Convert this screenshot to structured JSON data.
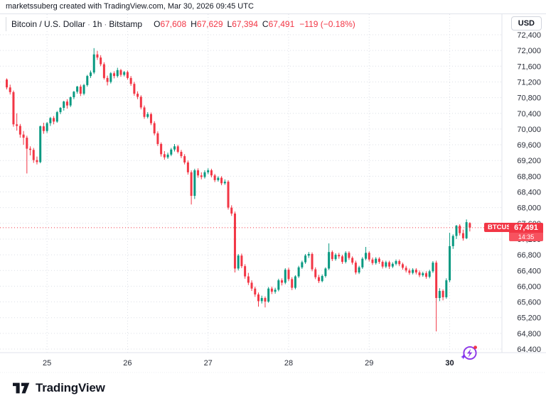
{
  "attribution": "marketssuberg created with TradingView.com, Mar 30, 2026 09:45 UTC",
  "legend": {
    "title": "Bitcoin / U.S. Dollar",
    "sep": "·",
    "interval": "1h",
    "exchange": "Bitstamp",
    "o_label": "O",
    "o_value": "67,608",
    "h_label": "H",
    "h_value": "67,629",
    "l_label": "L",
    "l_value": "67,394",
    "c_label": "C",
    "c_value": "67,491",
    "change": "−119 (−0.18%)"
  },
  "currency_button": "USD",
  "last_price_label": {
    "symbol": "BTCUSD",
    "price": "67,491",
    "countdown": "14:35"
  },
  "footer": {
    "logo_text": "TradingView"
  },
  "colors": {
    "up": "#089981",
    "down": "#f23645",
    "last_price_line": "#f23645",
    "grid": "#dcdfe6",
    "axis_line": "#e0e3eb",
    "purple": "#8c35e8"
  },
  "chart_data": {
    "type": "candlestick",
    "title": "Bitcoin / U.S. Dollar",
    "exchange": "Bitstamp",
    "interval": "1h",
    "price_axis": {
      "unit": "USD",
      "min": 64400,
      "max": 72400,
      "step": 400,
      "tick_labels": [
        "72,400",
        "72,000",
        "71,600",
        "71,200",
        "70,800",
        "70,400",
        "70,000",
        "69,600",
        "69,200",
        "68,800",
        "68,400",
        "68,000",
        "67,600",
        "67,200",
        "66,800",
        "66,400",
        "66,000",
        "65,600",
        "65,200",
        "64,800",
        "64,400"
      ]
    },
    "time_axis": {
      "labels": [
        "25",
        "26",
        "27",
        "28",
        "29",
        "30"
      ],
      "candle_indices": [
        12,
        36,
        60,
        84,
        108,
        132
      ],
      "emphasized": "30",
      "month": "March"
    },
    "last_price": 67491,
    "last_candle": {
      "open": 67608,
      "high": 67629,
      "low": 67394,
      "close": 67491,
      "change": -119,
      "change_pct": -0.18
    },
    "candles": [
      [
        71260,
        71290,
        71010,
        71060
      ],
      [
        71060,
        71130,
        70880,
        70940
      ],
      [
        70940,
        70980,
        70060,
        70120
      ],
      [
        70120,
        70400,
        69960,
        70080
      ],
      [
        70080,
        70130,
        69780,
        69860
      ],
      [
        69860,
        69950,
        69600,
        69780
      ],
      [
        69780,
        69830,
        68870,
        69500
      ],
      [
        69500,
        69560,
        69330,
        69470
      ],
      [
        69470,
        69520,
        69140,
        69210
      ],
      [
        69210,
        69300,
        69100,
        69160
      ],
      [
        69160,
        70090,
        69130,
        70070
      ],
      [
        70070,
        70160,
        69880,
        69950
      ],
      [
        69950,
        70180,
        69900,
        70150
      ],
      [
        70150,
        70310,
        70080,
        70280
      ],
      [
        70280,
        70330,
        70120,
        70190
      ],
      [
        70190,
        70460,
        70160,
        70430
      ],
      [
        70430,
        70560,
        70380,
        70540
      ],
      [
        70540,
        70720,
        70470,
        70700
      ],
      [
        70700,
        70760,
        70520,
        70600
      ],
      [
        70600,
        70830,
        70560,
        70810
      ],
      [
        70810,
        70970,
        70760,
        70950
      ],
      [
        70950,
        71100,
        70900,
        71080
      ],
      [
        71080,
        71130,
        70840,
        70900
      ],
      [
        70900,
        71150,
        70860,
        71120
      ],
      [
        71120,
        71380,
        71080,
        71350
      ],
      [
        71350,
        71490,
        71300,
        71440
      ],
      [
        71440,
        72060,
        71400,
        71900
      ],
      [
        71900,
        71990,
        71760,
        71820
      ],
      [
        71820,
        71880,
        71600,
        71650
      ],
      [
        71650,
        71700,
        71260,
        71300
      ],
      [
        71300,
        71360,
        71110,
        71200
      ],
      [
        71200,
        71450,
        71160,
        71420
      ],
      [
        71420,
        71470,
        71290,
        71350
      ],
      [
        71350,
        71560,
        71310,
        71500
      ],
      [
        71500,
        71530,
        71330,
        71380
      ],
      [
        71380,
        71480,
        71340,
        71450
      ],
      [
        71450,
        71490,
        71260,
        71300
      ],
      [
        71300,
        71350,
        71100,
        71150
      ],
      [
        71150,
        71200,
        70850,
        70900
      ],
      [
        70900,
        70960,
        70760,
        70820
      ],
      [
        70820,
        70860,
        70500,
        70550
      ],
      [
        70550,
        70600,
        70260,
        70310
      ],
      [
        70310,
        70430,
        70270,
        70380
      ],
      [
        70380,
        70420,
        70100,
        70150
      ],
      [
        70150,
        70200,
        69840,
        69890
      ],
      [
        69890,
        69940,
        69570,
        69620
      ],
      [
        69620,
        69660,
        69300,
        69360
      ],
      [
        69360,
        69440,
        69220,
        69280
      ],
      [
        69280,
        69400,
        69240,
        69350
      ],
      [
        69350,
        69520,
        69310,
        69480
      ],
      [
        69480,
        69620,
        69430,
        69560
      ],
      [
        69560,
        69600,
        69380,
        69420
      ],
      [
        69420,
        69470,
        69260,
        69310
      ],
      [
        69310,
        69360,
        69100,
        69150
      ],
      [
        69150,
        69200,
        68840,
        68900
      ],
      [
        68900,
        68950,
        68080,
        68300
      ],
      [
        68300,
        68990,
        68220,
        68950
      ],
      [
        68950,
        69000,
        68760,
        68820
      ],
      [
        68820,
        68900,
        68720,
        68780
      ],
      [
        68780,
        68950,
        68740,
        68900
      ],
      [
        68900,
        69000,
        68850,
        68950
      ],
      [
        68950,
        68990,
        68770,
        68820
      ],
      [
        68820,
        68860,
        68650,
        68700
      ],
      [
        68700,
        68800,
        68660,
        68760
      ],
      [
        68760,
        68800,
        68570,
        68620
      ],
      [
        68620,
        68720,
        68580,
        68660
      ],
      [
        68660,
        68700,
        67950,
        68000
      ],
      [
        68000,
        68060,
        67790,
        67850
      ],
      [
        67850,
        67900,
        66350,
        66450
      ],
      [
        66450,
        66820,
        66400,
        66780
      ],
      [
        66780,
        66830,
        66460,
        66510
      ],
      [
        66510,
        66560,
        66190,
        66250
      ],
      [
        66250,
        66340,
        66030,
        66090
      ],
      [
        66090,
        66150,
        65880,
        65940
      ],
      [
        65940,
        65990,
        65730,
        65790
      ],
      [
        65790,
        65840,
        65480,
        65620
      ],
      [
        65620,
        65760,
        65560,
        65700
      ],
      [
        65700,
        65740,
        65460,
        65610
      ],
      [
        65610,
        65980,
        65580,
        65940
      ],
      [
        65940,
        65990,
        65800,
        65860
      ],
      [
        65860,
        65960,
        65810,
        65910
      ],
      [
        65910,
        66190,
        65870,
        66150
      ],
      [
        66150,
        66200,
        66020,
        66090
      ],
      [
        66090,
        66460,
        66050,
        66420
      ],
      [
        66420,
        66470,
        66130,
        66180
      ],
      [
        66180,
        66230,
        65900,
        65960
      ],
      [
        65960,
        66280,
        65920,
        66250
      ],
      [
        66250,
        66520,
        66210,
        66480
      ],
      [
        66480,
        66650,
        66440,
        66610
      ],
      [
        66610,
        66820,
        66570,
        66780
      ],
      [
        66780,
        66870,
        66720,
        66820
      ],
      [
        66820,
        66860,
        66380,
        66430
      ],
      [
        66430,
        66480,
        66180,
        66230
      ],
      [
        66230,
        66290,
        66080,
        66130
      ],
      [
        66130,
        66300,
        66100,
        66260
      ],
      [
        66260,
        66480,
        66220,
        66450
      ],
      [
        66450,
        67090,
        66410,
        66870
      ],
      [
        66870,
        66910,
        66640,
        66690
      ],
      [
        66690,
        66840,
        66650,
        66800
      ],
      [
        66800,
        66850,
        66700,
        66760
      ],
      [
        66760,
        66800,
        66570,
        66620
      ],
      [
        66620,
        66890,
        66580,
        66850
      ],
      [
        66850,
        66890,
        66670,
        66720
      ],
      [
        66720,
        66760,
        66550,
        66600
      ],
      [
        66600,
        66650,
        66300,
        66350
      ],
      [
        66350,
        66520,
        66310,
        66480
      ],
      [
        66480,
        66740,
        66440,
        66700
      ],
      [
        66700,
        67000,
        66660,
        66850
      ],
      [
        66850,
        66890,
        66630,
        66680
      ],
      [
        66680,
        66730,
        66540,
        66590
      ],
      [
        66590,
        66740,
        66550,
        66700
      ],
      [
        66700,
        66740,
        66570,
        66620
      ],
      [
        66620,
        66660,
        66450,
        66500
      ],
      [
        66500,
        66650,
        66460,
        66610
      ],
      [
        66610,
        66650,
        66440,
        66500
      ],
      [
        66500,
        66610,
        66460,
        66570
      ],
      [
        66570,
        66680,
        66530,
        66640
      ],
      [
        66640,
        66680,
        66510,
        66560
      ],
      [
        66560,
        66600,
        66420,
        66470
      ],
      [
        66470,
        66520,
        66350,
        66400
      ],
      [
        66400,
        66450,
        66290,
        66340
      ],
      [
        66340,
        66460,
        66300,
        66420
      ],
      [
        66420,
        66460,
        66300,
        66350
      ],
      [
        66350,
        66400,
        66230,
        66280
      ],
      [
        66280,
        66370,
        66240,
        66330
      ],
      [
        66330,
        66380,
        66190,
        66240
      ],
      [
        66240,
        66420,
        66200,
        66380
      ],
      [
        66380,
        66640,
        66340,
        66600
      ],
      [
        66600,
        66650,
        64850,
        65700
      ],
      [
        65700,
        65950,
        65620,
        65880
      ],
      [
        65880,
        65920,
        65640,
        65720
      ],
      [
        65720,
        66200,
        65680,
        66150
      ],
      [
        66150,
        67360,
        66100,
        67020
      ],
      [
        67020,
        67320,
        66950,
        67280
      ],
      [
        67280,
        67560,
        67200,
        67540
      ],
      [
        67540,
        67580,
        67290,
        67350
      ],
      [
        67350,
        67440,
        67160,
        67220
      ],
      [
        67220,
        67700,
        67200,
        67630
      ],
      [
        67608,
        67629,
        67394,
        67491
      ]
    ]
  }
}
